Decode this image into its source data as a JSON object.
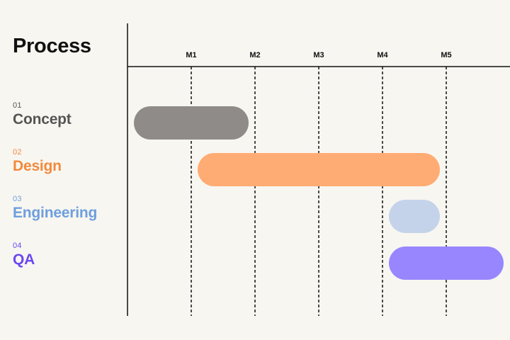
{
  "chart_data": {
    "type": "gantt",
    "title": "Process",
    "x": [
      "M1",
      "M2",
      "M3",
      "M4",
      "M5"
    ],
    "xlim": [
      0,
      6
    ],
    "grid": "dashed vertical at each milestone",
    "tasks": [
      {
        "number": "01",
        "name": "Concept",
        "start": 0.1,
        "end": 1.9,
        "color": "#8f8b89"
      },
      {
        "number": "02",
        "name": "Design",
        "start": 1.1,
        "end": 4.9,
        "color": "#ffac74"
      },
      {
        "number": "03",
        "name": "Engineering",
        "start": 4.1,
        "end": 4.9,
        "color": "#c5d3ea"
      },
      {
        "number": "04",
        "name": "QA",
        "start": 4.1,
        "end": 5.9,
        "color": "#9886ff"
      }
    ],
    "label_colors": [
      "#555555",
      "#f28a3c",
      "#6d9fdd",
      "#6b48f0"
    ]
  }
}
